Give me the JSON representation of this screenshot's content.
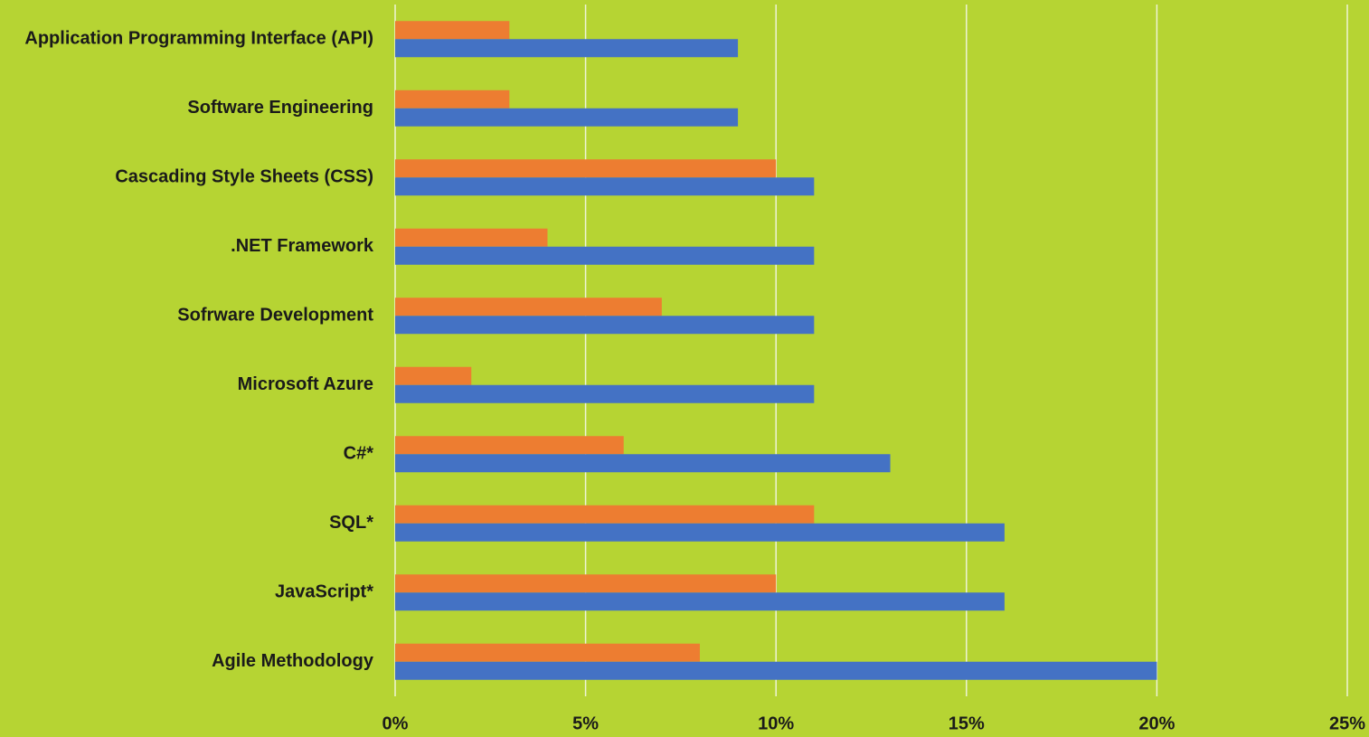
{
  "chart_data": {
    "type": "barh",
    "categories": [
      "Application Programming Interface (API)",
      "Software Engineering",
      "Cascading Style Sheets (CSS)",
      ".NET Framework",
      "Sofrware Development",
      "Microsoft Azure",
      "C#*",
      "SQL*",
      "JavaScript*",
      "Agile Methodology"
    ],
    "series": [
      {
        "color": "#ed7d31",
        "values": [
          3,
          3,
          10,
          4,
          7,
          2,
          6,
          11,
          10,
          8
        ]
      },
      {
        "color": "#4472c4",
        "values": [
          9,
          9,
          11,
          11,
          11,
          11,
          13,
          16,
          16,
          20
        ]
      }
    ],
    "xlim": [
      0,
      25
    ],
    "xticks": [
      {
        "value": 0,
        "label": "0%"
      },
      {
        "value": 5,
        "label": "5%"
      },
      {
        "value": 10,
        "label": "10%"
      },
      {
        "value": 15,
        "label": "15%"
      },
      {
        "value": 20,
        "label": "20%"
      },
      {
        "value": 25,
        "label": "25%"
      }
    ],
    "grid": true
  }
}
